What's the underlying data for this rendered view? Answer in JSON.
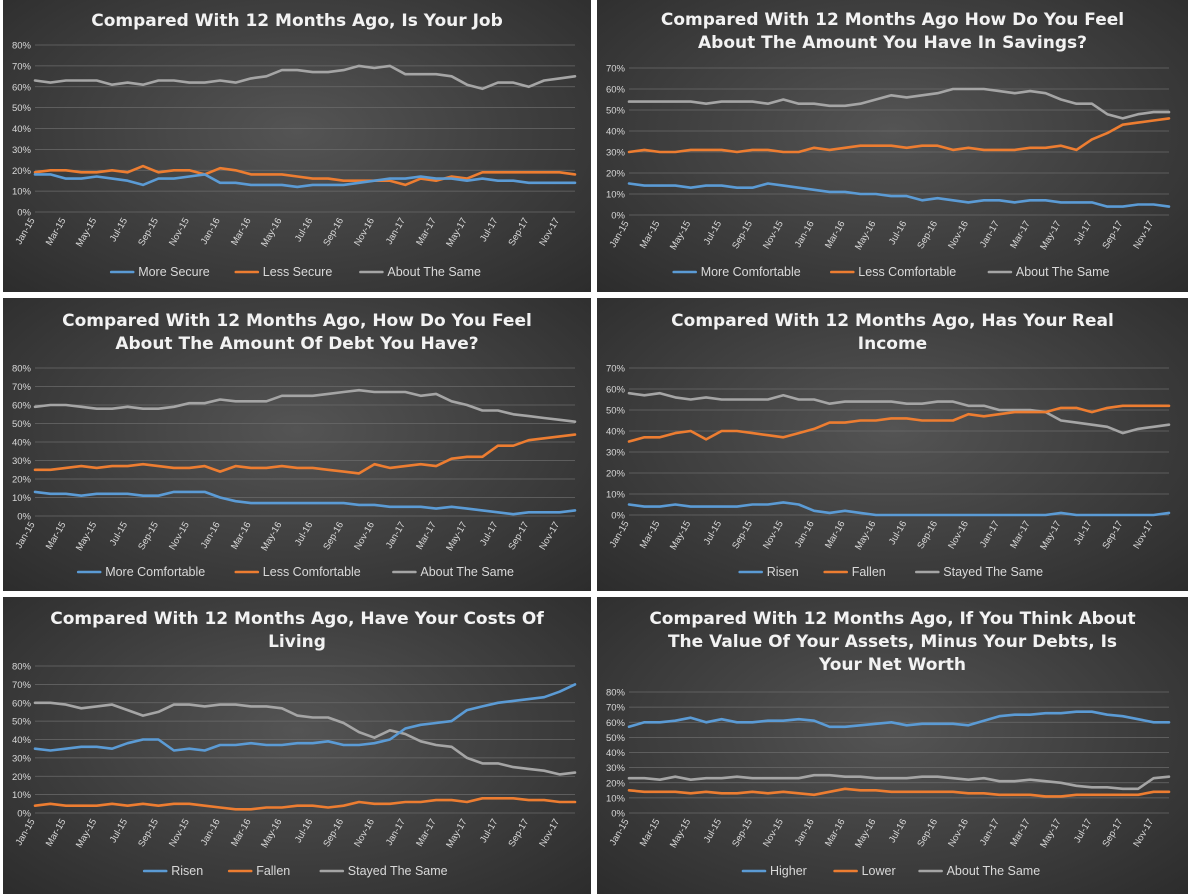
{
  "colors": {
    "blue": "#5b9bd5",
    "orange": "#ed7d31",
    "gray": "#a5a5a5"
  },
  "chart_data": [
    {
      "type": "line",
      "title": [
        "Compared With 12 Months Ago, Is Your Job"
      ],
      "x_tick_labels": [
        "Jan-15",
        "Mar-15",
        "May-15",
        "Jul-15",
        "Sep-15",
        "Nov-15",
        "Jan-16",
        "Mar-16",
        "May-16",
        "Jul-16",
        "Sep-16",
        "Nov-16",
        "Jan-17",
        "Mar-17",
        "May-17",
        "Jul-17",
        "Sep-17",
        "Nov-17"
      ],
      "ylim": [
        0,
        80
      ],
      "y_ticks": [
        0,
        10,
        20,
        30,
        40,
        50,
        60,
        70,
        80
      ],
      "legend_position": "bottom",
      "grid": true,
      "series": [
        {
          "name": "More Secure",
          "color": "blue",
          "values": [
            18,
            18,
            16,
            16,
            17,
            16,
            15,
            13,
            16,
            16,
            17,
            18,
            14,
            14,
            13,
            13,
            13,
            12,
            13,
            13,
            13,
            14,
            15,
            16,
            16,
            17,
            16,
            16,
            15,
            16,
            15,
            15,
            14,
            14,
            14,
            14
          ]
        },
        {
          "name": "Less Secure",
          "color": "orange",
          "values": [
            19,
            20,
            20,
            19,
            19,
            20,
            19,
            22,
            19,
            20,
            20,
            18,
            21,
            20,
            18,
            18,
            18,
            17,
            16,
            16,
            15,
            15,
            15,
            15,
            13,
            16,
            15,
            17,
            16,
            19,
            19,
            19,
            19,
            19,
            19,
            18
          ]
        },
        {
          "name": "About The Same",
          "color": "gray",
          "values": [
            63,
            62,
            63,
            63,
            63,
            61,
            62,
            61,
            63,
            63,
            62,
            62,
            63,
            62,
            64,
            65,
            68,
            68,
            67,
            67,
            68,
            70,
            69,
            70,
            66,
            66,
            66,
            65,
            61,
            59,
            62,
            62,
            60,
            63,
            64,
            65
          ]
        }
      ]
    },
    {
      "type": "line",
      "title": [
        "Compared With 12 Months Ago How Do You Feel",
        "About The Amount You Have In Savings?"
      ],
      "x_tick_labels": [
        "Jan-15",
        "Mar-15",
        "May-15",
        "Jul-15",
        "Sep-15",
        "Nov-15",
        "Jan-16",
        "Mar-16",
        "May-16",
        "Jul-16",
        "Sep-16",
        "Nov-16",
        "Jan-17",
        "Mar-17",
        "May-17",
        "Jul-17",
        "Sep-17",
        "Nov-17"
      ],
      "ylim": [
        0,
        70
      ],
      "y_ticks": [
        0,
        10,
        20,
        30,
        40,
        50,
        60,
        70
      ],
      "legend_position": "bottom",
      "grid": true,
      "series": [
        {
          "name": "More Comfortable",
          "color": "blue",
          "values": [
            15,
            14,
            14,
            14,
            13,
            14,
            14,
            13,
            13,
            15,
            14,
            13,
            12,
            11,
            11,
            10,
            10,
            9,
            9,
            7,
            8,
            7,
            6,
            7,
            7,
            6,
            7,
            7,
            6,
            6,
            6,
            4,
            4,
            5,
            5,
            4
          ]
        },
        {
          "name": "Less Comfortable",
          "color": "orange",
          "values": [
            30,
            31,
            30,
            30,
            31,
            31,
            31,
            30,
            31,
            31,
            30,
            30,
            32,
            31,
            32,
            33,
            33,
            33,
            32,
            33,
            33,
            31,
            32,
            31,
            31,
            31,
            32,
            32,
            33,
            31,
            36,
            39,
            43,
            44,
            45,
            46
          ]
        },
        {
          "name": "About The Same",
          "color": "gray",
          "values": [
            54,
            54,
            54,
            54,
            54,
            53,
            54,
            54,
            54,
            53,
            55,
            53,
            53,
            52,
            52,
            53,
            55,
            57,
            56,
            57,
            58,
            60,
            60,
            60,
            59,
            58,
            59,
            58,
            55,
            53,
            53,
            48,
            46,
            48,
            49,
            49
          ]
        }
      ]
    },
    {
      "type": "line",
      "title": [
        "Compared With 12 Months Ago, How Do You Feel",
        "About The Amount Of Debt You Have?"
      ],
      "x_tick_labels": [
        "Jan-15",
        "Mar-15",
        "May-15",
        "Jul-15",
        "Sep-15",
        "Nov-15",
        "Jan-16",
        "Mar-16",
        "May-16",
        "Jul-16",
        "Sep-16",
        "Nov-16",
        "Jan-17",
        "Mar-17",
        "May-17",
        "Jul-17",
        "Sep-17",
        "Nov-17"
      ],
      "ylim": [
        0,
        80
      ],
      "y_ticks": [
        0,
        10,
        20,
        30,
        40,
        50,
        60,
        70,
        80
      ],
      "legend_position": "bottom",
      "grid": true,
      "series": [
        {
          "name": "More Comfortable",
          "color": "blue",
          "values": [
            13,
            12,
            12,
            11,
            12,
            12,
            12,
            11,
            11,
            13,
            13,
            13,
            10,
            8,
            7,
            7,
            7,
            7,
            7,
            7,
            7,
            6,
            6,
            5,
            5,
            5,
            4,
            5,
            4,
            3,
            2,
            1,
            2,
            2,
            2,
            3
          ]
        },
        {
          "name": "Less Comfortable",
          "color": "orange",
          "values": [
            25,
            25,
            26,
            27,
            26,
            27,
            27,
            28,
            27,
            26,
            26,
            27,
            24,
            27,
            26,
            26,
            27,
            26,
            26,
            25,
            24,
            23,
            28,
            26,
            27,
            28,
            27,
            31,
            32,
            32,
            38,
            38,
            41,
            42,
            43,
            44
          ]
        },
        {
          "name": "About The Same",
          "color": "gray",
          "values": [
            59,
            60,
            60,
            59,
            58,
            58,
            59,
            58,
            58,
            59,
            61,
            61,
            63,
            62,
            62,
            62,
            65,
            65,
            65,
            66,
            67,
            68,
            67,
            67,
            67,
            65,
            66,
            62,
            60,
            57,
            57,
            55,
            54,
            53,
            52,
            51
          ]
        }
      ]
    },
    {
      "type": "line",
      "title": [
        "Compared With 12 Months Ago, Has Your Real",
        "Income"
      ],
      "x_tick_labels": [
        "Jan-15",
        "Mar-15",
        "May-15",
        "Jul-15",
        "Sep-15",
        "Nov-15",
        "Jan-16",
        "Mar-16",
        "May-16",
        "Jul-16",
        "Sep-16",
        "Nov-16",
        "Jan-17",
        "Mar-17",
        "May-17",
        "Jul-17",
        "Sep-17",
        "Nov-17"
      ],
      "ylim": [
        0,
        70
      ],
      "y_ticks": [
        0,
        10,
        20,
        30,
        40,
        50,
        60,
        70
      ],
      "legend_position": "bottom",
      "grid": true,
      "series": [
        {
          "name": "Risen",
          "color": "blue",
          "values": [
            5,
            4,
            4,
            5,
            4,
            4,
            4,
            4,
            5,
            5,
            6,
            5,
            2,
            1,
            2,
            1,
            0,
            0,
            0,
            0,
            0,
            0,
            0,
            0,
            0,
            0,
            0,
            0,
            1,
            0,
            0,
            0,
            0,
            0,
            0,
            1
          ]
        },
        {
          "name": "Fallen",
          "color": "orange",
          "values": [
            35,
            37,
            37,
            39,
            40,
            36,
            40,
            40,
            39,
            38,
            37,
            39,
            41,
            44,
            44,
            45,
            45,
            46,
            46,
            45,
            45,
            45,
            48,
            47,
            48,
            49,
            49,
            49,
            51,
            51,
            49,
            51,
            52,
            52,
            52,
            52
          ]
        },
        {
          "name": "Stayed The Same",
          "color": "gray",
          "values": [
            58,
            57,
            58,
            56,
            55,
            56,
            55,
            55,
            55,
            55,
            57,
            55,
            55,
            53,
            54,
            54,
            54,
            54,
            53,
            53,
            54,
            54,
            52,
            52,
            50,
            50,
            50,
            49,
            45,
            44,
            43,
            42,
            39,
            41,
            42,
            43
          ]
        }
      ]
    },
    {
      "type": "line",
      "title": [
        "Compared With 12 Months Ago, Have Your Costs Of",
        "Living"
      ],
      "x_tick_labels": [
        "Jan-15",
        "Mar-15",
        "May-15",
        "Jul-15",
        "Sep-15",
        "Nov-15",
        "Jan-16",
        "Mar-16",
        "May-16",
        "Jul-16",
        "Sep-16",
        "Nov-16",
        "Jan-17",
        "Mar-17",
        "May-17",
        "Jul-17",
        "Sep-17",
        "Nov-17"
      ],
      "ylim": [
        0,
        80
      ],
      "y_ticks": [
        0,
        10,
        20,
        30,
        40,
        50,
        60,
        70,
        80
      ],
      "legend_position": "bottom",
      "grid": true,
      "series": [
        {
          "name": "Risen",
          "color": "blue",
          "values": [
            35,
            34,
            35,
            36,
            36,
            35,
            38,
            40,
            40,
            34,
            35,
            34,
            37,
            37,
            38,
            37,
            37,
            38,
            38,
            39,
            37,
            37,
            38,
            40,
            46,
            48,
            49,
            50,
            56,
            58,
            60,
            61,
            62,
            63,
            66,
            70
          ]
        },
        {
          "name": "Fallen",
          "color": "orange",
          "values": [
            4,
            5,
            4,
            4,
            4,
            5,
            4,
            5,
            4,
            5,
            5,
            4,
            3,
            2,
            2,
            3,
            3,
            4,
            4,
            3,
            4,
            6,
            5,
            5,
            6,
            6,
            7,
            7,
            6,
            8,
            8,
            8,
            7,
            7,
            6,
            6
          ]
        },
        {
          "name": "Stayed The Same",
          "color": "gray",
          "values": [
            60,
            60,
            59,
            57,
            58,
            59,
            56,
            53,
            55,
            59,
            59,
            58,
            59,
            59,
            58,
            58,
            57,
            53,
            52,
            52,
            49,
            44,
            41,
            45,
            43,
            39,
            37,
            36,
            30,
            27,
            27,
            25,
            24,
            23,
            21,
            22
          ]
        }
      ]
    },
    {
      "type": "line",
      "title": [
        "Compared With 12 Months Ago, If You Think About",
        "The Value Of Your Assets, Minus Your Debts, Is",
        "Your Net Worth"
      ],
      "x_tick_labels": [
        "Jan-15",
        "Mar-15",
        "May-15",
        "Jul-15",
        "Sep-15",
        "Nov-15",
        "Jan-16",
        "Mar-16",
        "May-16",
        "Jul-16",
        "Sep-16",
        "Nov-16",
        "Jan-17",
        "Mar-17",
        "May-17",
        "Jul-17",
        "Sep-17",
        "Nov-17"
      ],
      "ylim": [
        0,
        80
      ],
      "y_ticks": [
        0,
        10,
        20,
        30,
        40,
        50,
        60,
        70,
        80
      ],
      "legend_position": "bottom",
      "grid": true,
      "series": [
        {
          "name": "Higher",
          "color": "blue",
          "values": [
            57,
            60,
            60,
            61,
            63,
            60,
            62,
            60,
            60,
            61,
            61,
            62,
            61,
            57,
            57,
            58,
            59,
            60,
            58,
            59,
            59,
            59,
            58,
            61,
            64,
            65,
            65,
            66,
            66,
            67,
            67,
            65,
            64,
            62,
            60,
            60
          ]
        },
        {
          "name": "Lower",
          "color": "orange",
          "values": [
            15,
            14,
            14,
            14,
            13,
            14,
            13,
            13,
            14,
            13,
            14,
            13,
            12,
            14,
            16,
            15,
            15,
            14,
            14,
            14,
            14,
            14,
            13,
            13,
            12,
            12,
            12,
            11,
            11,
            12,
            12,
            12,
            12,
            12,
            14,
            14
          ]
        },
        {
          "name": "About The Same",
          "color": "gray",
          "values": [
            23,
            23,
            22,
            24,
            22,
            23,
            23,
            24,
            23,
            23,
            23,
            23,
            25,
            25,
            24,
            24,
            23,
            23,
            23,
            24,
            24,
            23,
            22,
            23,
            21,
            21,
            22,
            21,
            20,
            18,
            17,
            17,
            16,
            16,
            23,
            24
          ]
        }
      ]
    }
  ]
}
